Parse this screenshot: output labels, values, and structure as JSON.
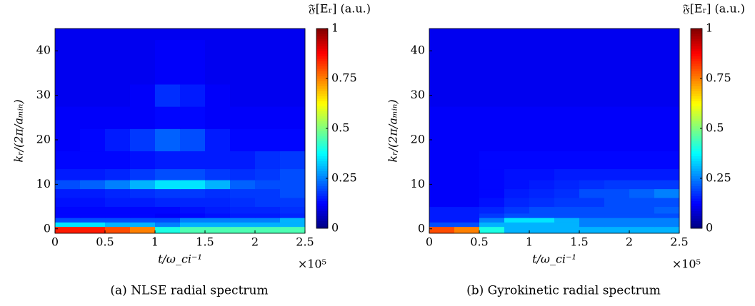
{
  "chart_data": [
    {
      "type": "heatmap",
      "caption": "(a) NLSE radial spectrum",
      "xlabel": "t/ω_ci⁻¹",
      "ylabel": "kᵣ/(2π/aₘᵢₙ)",
      "x_multiplier": "×10⁵",
      "colorbar_label": "𝔉[Eᵣ] (a.u.)",
      "colormap": "jet",
      "x": [
        0.125,
        0.375,
        0.625,
        0.875,
        1.125,
        1.375,
        1.625,
        1.875,
        2.125,
        2.375
      ],
      "y": [
        0,
        1,
        2,
        3,
        4,
        6,
        8,
        10,
        12,
        15,
        20,
        25,
        30,
        35,
        40,
        45
      ],
      "z": [
        [
          0.85,
          0.85,
          0.8,
          0.75,
          0.4,
          0.45,
          0.45,
          0.45,
          0.45,
          0.45
        ],
        [
          0.35,
          0.35,
          0.3,
          0.3,
          0.25,
          0.3,
          0.3,
          0.3,
          0.3,
          0.3
        ],
        [
          0.2,
          0.2,
          0.2,
          0.2,
          0.2,
          0.25,
          0.25,
          0.25,
          0.25,
          0.3
        ],
        [
          0.13,
          0.13,
          0.13,
          0.13,
          0.12,
          0.13,
          0.14,
          0.15,
          0.15,
          0.16
        ],
        [
          0.13,
          0.13,
          0.13,
          0.13,
          0.13,
          0.14,
          0.15,
          0.16,
          0.16,
          0.17
        ],
        [
          0.14,
          0.14,
          0.15,
          0.15,
          0.16,
          0.16,
          0.16,
          0.17,
          0.18,
          0.18
        ],
        [
          0.15,
          0.15,
          0.16,
          0.17,
          0.18,
          0.18,
          0.17,
          0.18,
          0.18,
          0.2
        ],
        [
          0.2,
          0.22,
          0.25,
          0.3,
          0.35,
          0.35,
          0.3,
          0.22,
          0.2,
          0.2
        ],
        [
          0.15,
          0.15,
          0.16,
          0.18,
          0.2,
          0.2,
          0.18,
          0.17,
          0.18,
          0.2
        ],
        [
          0.13,
          0.13,
          0.13,
          0.14,
          0.15,
          0.15,
          0.15,
          0.15,
          0.17,
          0.18
        ],
        [
          0.12,
          0.13,
          0.15,
          0.18,
          0.22,
          0.2,
          0.15,
          0.13,
          0.13,
          0.13
        ],
        [
          0.12,
          0.12,
          0.12,
          0.12,
          0.13,
          0.13,
          0.12,
          0.12,
          0.12,
          0.12
        ],
        [
          0.11,
          0.11,
          0.11,
          0.12,
          0.17,
          0.15,
          0.12,
          0.11,
          0.11,
          0.11
        ],
        [
          0.11,
          0.11,
          0.11,
          0.11,
          0.12,
          0.12,
          0.11,
          0.11,
          0.11,
          0.11
        ],
        [
          0.11,
          0.11,
          0.11,
          0.11,
          0.12,
          0.12,
          0.11,
          0.11,
          0.11,
          0.11
        ],
        [
          0.11,
          0.11,
          0.11,
          0.11,
          0.11,
          0.11,
          0.11,
          0.11,
          0.11,
          0.11
        ]
      ],
      "xlim": [
        0,
        2.5
      ],
      "xticks": [
        0,
        0.5,
        1,
        1.5,
        2,
        2.5
      ],
      "ylim": [
        -1,
        45
      ],
      "yticks": [
        0,
        10,
        20,
        30,
        40
      ],
      "clim": [
        0,
        1
      ],
      "cticks": [
        0,
        0.25,
        0.5,
        0.75,
        1
      ]
    },
    {
      "type": "heatmap",
      "caption": "(b) Gyrokinetic radial spectrum",
      "xlabel": "t/ω_ci⁻¹",
      "ylabel": "kᵣ/(2π/aₘᵢₙ)",
      "x_multiplier": "×10⁵",
      "colorbar_label": "𝔉[Eᵣ] (a.u.)",
      "colormap": "jet",
      "x": [
        0.125,
        0.375,
        0.625,
        0.875,
        1.125,
        1.375,
        1.625,
        1.875,
        2.125,
        2.375
      ],
      "y": [
        0,
        1,
        2,
        3,
        4,
        6,
        8,
        10,
        12,
        15,
        20,
        25,
        30,
        35,
        40,
        45
      ],
      "z": [
        [
          0.8,
          0.75,
          0.4,
          0.3,
          0.3,
          0.3,
          0.3,
          0.3,
          0.3,
          0.3
        ],
        [
          0.2,
          0.2,
          0.3,
          0.3,
          0.3,
          0.3,
          0.25,
          0.25,
          0.25,
          0.25
        ],
        [
          0.15,
          0.15,
          0.25,
          0.35,
          0.35,
          0.3,
          0.25,
          0.25,
          0.25,
          0.25
        ],
        [
          0.15,
          0.15,
          0.18,
          0.2,
          0.2,
          0.2,
          0.2,
          0.2,
          0.2,
          0.2
        ],
        [
          0.15,
          0.15,
          0.16,
          0.18,
          0.2,
          0.2,
          0.2,
          0.2,
          0.2,
          0.22
        ],
        [
          0.12,
          0.12,
          0.14,
          0.16,
          0.17,
          0.18,
          0.18,
          0.2,
          0.2,
          0.2
        ],
        [
          0.12,
          0.12,
          0.13,
          0.15,
          0.16,
          0.17,
          0.2,
          0.2,
          0.22,
          0.25
        ],
        [
          0.12,
          0.12,
          0.13,
          0.14,
          0.15,
          0.16,
          0.17,
          0.18,
          0.18,
          0.18
        ],
        [
          0.12,
          0.12,
          0.13,
          0.14,
          0.14,
          0.15,
          0.15,
          0.15,
          0.15,
          0.15
        ],
        [
          0.12,
          0.12,
          0.13,
          0.13,
          0.13,
          0.13,
          0.13,
          0.13,
          0.13,
          0.13
        ],
        [
          0.12,
          0.12,
          0.12,
          0.12,
          0.12,
          0.12,
          0.12,
          0.12,
          0.12,
          0.12
        ],
        [
          0.12,
          0.12,
          0.12,
          0.12,
          0.12,
          0.12,
          0.12,
          0.12,
          0.12,
          0.12
        ],
        [
          0.11,
          0.11,
          0.11,
          0.11,
          0.11,
          0.11,
          0.11,
          0.11,
          0.11,
          0.11
        ],
        [
          0.11,
          0.11,
          0.11,
          0.11,
          0.11,
          0.11,
          0.11,
          0.11,
          0.11,
          0.11
        ],
        [
          0.11,
          0.11,
          0.11,
          0.11,
          0.11,
          0.11,
          0.11,
          0.11,
          0.11,
          0.11
        ],
        [
          0.11,
          0.11,
          0.11,
          0.11,
          0.11,
          0.11,
          0.11,
          0.11,
          0.11,
          0.11
        ]
      ],
      "xlim": [
        0,
        2.5
      ],
      "xticks": [
        0,
        0.5,
        1,
        1.5,
        2,
        2.5
      ],
      "ylim": [
        -1,
        45
      ],
      "yticks": [
        0,
        10,
        20,
        30,
        40
      ],
      "clim": [
        0,
        1
      ],
      "cticks": [
        0,
        0.25,
        0.5,
        0.75,
        1
      ]
    }
  ]
}
